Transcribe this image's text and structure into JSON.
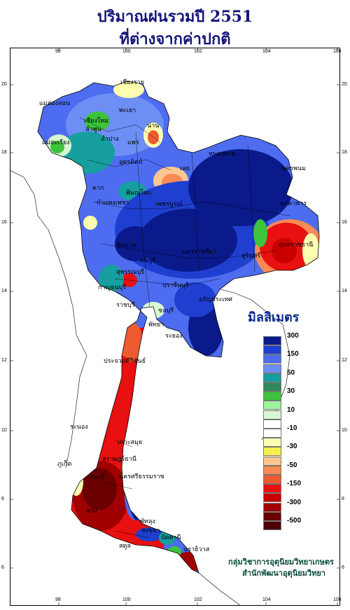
{
  "title": {
    "line1": "ปริมาณฝนรวมปี  2551",
    "line2": "ที่ต่างจากค่าปกติ"
  },
  "axes": {
    "x_ticks": [
      "98",
      "100",
      "102",
      "104",
      "106"
    ],
    "y_ticks": [
      "20",
      "18",
      "16",
      "14",
      "12",
      "10",
      "8",
      "6"
    ]
  },
  "legend": {
    "title": "มิลลิเมตร",
    "items": [
      {
        "color": "#0a1a8a",
        "label": "300"
      },
      {
        "color": "#1f3fd0",
        "label": ""
      },
      {
        "color": "#4d6cf0",
        "label": "150"
      },
      {
        "color": "#6c8ef5",
        "label": ""
      },
      {
        "color": "#179e9e",
        "label": "50"
      },
      {
        "color": "#2e8a5a",
        "label": ""
      },
      {
        "color": "#3cc43c",
        "label": "30"
      },
      {
        "color": "#9ef59e",
        "label": ""
      },
      {
        "color": "#d8f8d0",
        "label": "10"
      },
      {
        "color": "#ffffff",
        "label": ""
      },
      {
        "color": "#ffffff",
        "label": "-10"
      },
      {
        "color": "#fdfdb0",
        "label": ""
      },
      {
        "color": "#f5f050",
        "label": "-30"
      },
      {
        "color": "#fdc890",
        "label": ""
      },
      {
        "color": "#f88b55",
        "label": "-50"
      },
      {
        "color": "#f05a30",
        "label": ""
      },
      {
        "color": "#e81010",
        "label": "-150"
      },
      {
        "color": "#c80000",
        "label": ""
      },
      {
        "color": "#a00000",
        "label": "-300"
      },
      {
        "color": "#6a0000",
        "label": ""
      },
      {
        "color": "#4a0000",
        "label": "-500"
      }
    ]
  },
  "credits": {
    "line1": "กลุ่มวิชาการอุตุนิยมวิทยาเกษตร",
    "line2": "สำนักพัฒนาอุตุนิยมวิทยา"
  },
  "places": [
    {
      "name": "เชียงราย"
    },
    {
      "name": "แม่ฮ่องสอน"
    },
    {
      "name": "พะเยา"
    },
    {
      "name": "เชียงใหม่"
    },
    {
      "name": "ลำพูน"
    },
    {
      "name": "ลำปาง"
    },
    {
      "name": "น่าน"
    },
    {
      "name": "แพร่"
    },
    {
      "name": "แม่สะเรียง"
    },
    {
      "name": "อุตรดิตถ์"
    },
    {
      "name": "หนองคาย"
    },
    {
      "name": "นครพนม"
    },
    {
      "name": "เลย"
    },
    {
      "name": "มุกดาหาร"
    },
    {
      "name": "ตาก"
    },
    {
      "name": "พิษณุโลก"
    },
    {
      "name": "กำแพงเพชร"
    },
    {
      "name": "เพชรบูรณ์"
    },
    {
      "name": "อุบลราชธานี"
    },
    {
      "name": "นครราชสีมา"
    },
    {
      "name": "สุรินทร์"
    },
    {
      "name": "ชัยนาท"
    },
    {
      "name": "ลพบุรี"
    },
    {
      "name": "สุพรรณบุรี"
    },
    {
      "name": "กาญจนบุรี"
    },
    {
      "name": "ปราจีนบุรี"
    },
    {
      "name": "อรัญประเทศ"
    },
    {
      "name": "ราชบุรี"
    },
    {
      "name": "ชลบุรี"
    },
    {
      "name": "พัทยา"
    },
    {
      "name": "ระยอง"
    },
    {
      "name": "ประจวบคีรีขันธ์"
    },
    {
      "name": "ระนอง"
    },
    {
      "name": "เกาะสมุย"
    },
    {
      "name": "สุราษฎร์ธานี"
    },
    {
      "name": "ภูเก็ต"
    },
    {
      "name": "นครศรีธรรมราช"
    },
    {
      "name": "พัทลุง"
    },
    {
      "name": "สงขลา"
    },
    {
      "name": "ปัตตานี"
    },
    {
      "name": "นราธิวาส"
    },
    {
      "name": "กระบี่"
    },
    {
      "name": "ตรัง"
    },
    {
      "name": "สตูล"
    }
  ]
}
